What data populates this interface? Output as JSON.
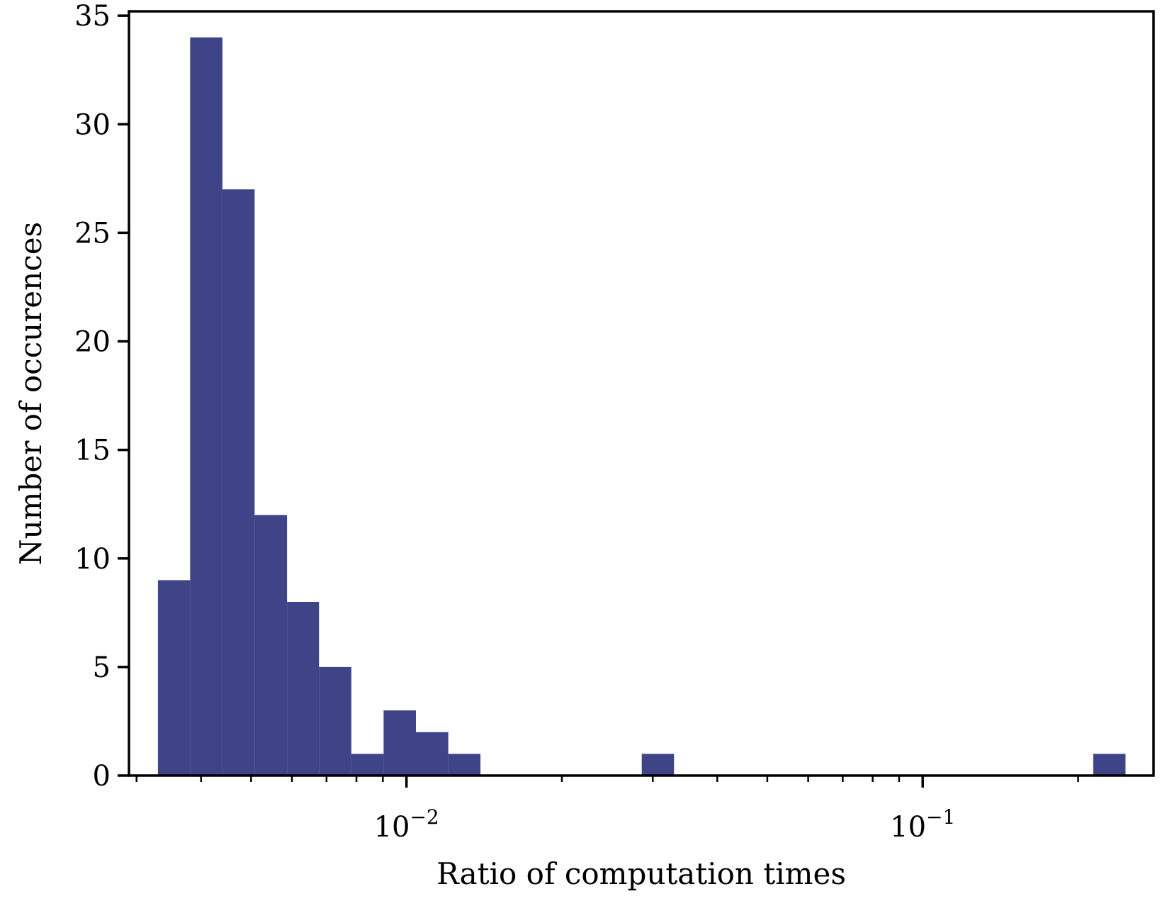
{
  "chart_data": {
    "type": "bar",
    "title": "",
    "xlabel": "Ratio of computation times",
    "ylabel": "Number of occurences",
    "x_scale": "log",
    "xlim": [
      0.0029,
      0.28
    ],
    "ylim": [
      0,
      35.2
    ],
    "y_ticks": [
      0,
      5,
      10,
      15,
      20,
      25,
      30,
      35
    ],
    "x_major_ticks": [
      {
        "value": 0.01,
        "base": "10",
        "exp": "−2"
      },
      {
        "value": 0.1,
        "base": "10",
        "exp": "−1"
      }
    ],
    "x_minor_ticks": [
      0.003,
      0.004,
      0.005,
      0.006,
      0.007,
      0.008,
      0.009,
      0.02,
      0.03,
      0.04,
      0.05,
      0.06,
      0.07,
      0.08,
      0.09,
      0.2
    ],
    "bar_color": "#3e4487",
    "grid": false,
    "bins": [
      {
        "x0": 0.0033,
        "x1": 0.00381,
        "count": 9
      },
      {
        "x0": 0.00381,
        "x1": 0.0044,
        "count": 34
      },
      {
        "x0": 0.0044,
        "x1": 0.00508,
        "count": 27
      },
      {
        "x0": 0.00508,
        "x1": 0.00587,
        "count": 12
      },
      {
        "x0": 0.00587,
        "x1": 0.00677,
        "count": 8
      },
      {
        "x0": 0.00677,
        "x1": 0.00782,
        "count": 5
      },
      {
        "x0": 0.00782,
        "x1": 0.00903,
        "count": 1
      },
      {
        "x0": 0.00903,
        "x1": 0.01043,
        "count": 3
      },
      {
        "x0": 0.01043,
        "x1": 0.01205,
        "count": 2
      },
      {
        "x0": 0.01205,
        "x1": 0.01391,
        "count": 1
      },
      {
        "x0": 0.01391,
        "x1": 0.01606,
        "count": 0
      },
      {
        "x0": 0.01606,
        "x1": 0.01855,
        "count": 0
      },
      {
        "x0": 0.01855,
        "x1": 0.02142,
        "count": 0
      },
      {
        "x0": 0.02142,
        "x1": 0.02473,
        "count": 0
      },
      {
        "x0": 0.02473,
        "x1": 0.02856,
        "count": 0
      },
      {
        "x0": 0.02856,
        "x1": 0.03298,
        "count": 1
      },
      {
        "x0": 0.03298,
        "x1": 0.03808,
        "count": 0
      },
      {
        "x0": 0.03808,
        "x1": 0.04397,
        "count": 0
      },
      {
        "x0": 0.04397,
        "x1": 0.05077,
        "count": 0
      },
      {
        "x0": 0.05077,
        "x1": 0.05863,
        "count": 0
      },
      {
        "x0": 0.05863,
        "x1": 0.0677,
        "count": 0
      },
      {
        "x0": 0.0677,
        "x1": 0.07818,
        "count": 0
      },
      {
        "x0": 0.07818,
        "x1": 0.09027,
        "count": 0
      },
      {
        "x0": 0.09027,
        "x1": 0.10424,
        "count": 0
      },
      {
        "x0": 0.10424,
        "x1": 0.12037,
        "count": 0
      },
      {
        "x0": 0.12037,
        "x1": 0.13899,
        "count": 0
      },
      {
        "x0": 0.13899,
        "x1": 0.1605,
        "count": 0
      },
      {
        "x0": 0.1605,
        "x1": 0.18533,
        "count": 0
      },
      {
        "x0": 0.18533,
        "x1": 0.21401,
        "count": 0
      },
      {
        "x0": 0.21401,
        "x1": 0.24711,
        "count": 1
      }
    ]
  }
}
